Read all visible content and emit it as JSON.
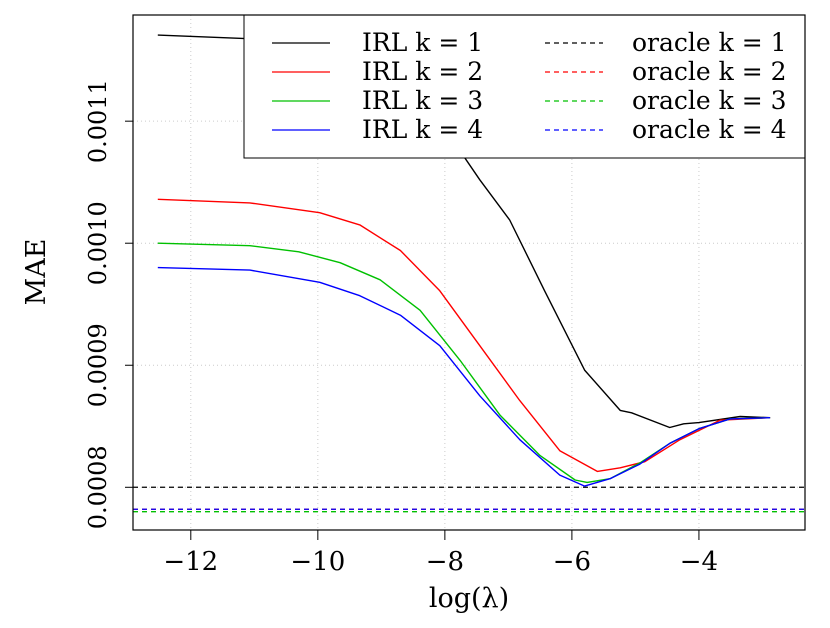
{
  "chart_data": {
    "type": "line",
    "title": "",
    "xlabel": "log(λ)",
    "ylabel": "MAE",
    "xlim": [
      -12.91,
      -2.33
    ],
    "ylim": [
      0.000765,
      0.001187
    ],
    "xticks": [
      -12,
      -10,
      -8,
      -6,
      -4
    ],
    "xtick_labels": [
      "−12",
      "−10",
      "−8",
      "−6",
      "−4"
    ],
    "yticks": [
      0.0008,
      0.0009,
      0.001,
      0.0011
    ],
    "ytick_labels": [
      "0.0008",
      "0.0009",
      "0.0010",
      "0.0011"
    ],
    "grid": true,
    "legend_placement": "top-right",
    "series": [
      {
        "name": "IRL k = 1",
        "color": "#000000",
        "style": "solid",
        "x": [
          -12.52,
          -10.3,
          -9.65,
          -8.7,
          -8.08,
          -7.45,
          -6.98,
          -6.43,
          -5.8,
          -5.24,
          -5.06,
          -4.46,
          -4.24,
          -4.0,
          -3.35,
          -2.88
        ],
        "y": [
          0.0011705,
          0.001166,
          0.001162,
          0.001138,
          0.0011,
          0.001052,
          0.001019,
          0.000961,
          0.000896,
          0.000863,
          0.000861,
          0.000849,
          0.000852,
          0.000853,
          0.000858,
          0.000857
        ]
      },
      {
        "name": "IRL k = 2",
        "color": "#ff0000",
        "style": "solid",
        "x": [
          -12.52,
          -11.07,
          -9.97,
          -9.34,
          -8.7,
          -8.08,
          -7.45,
          -6.82,
          -6.19,
          -5.6,
          -5.24,
          -4.85,
          -4.3,
          -3.67,
          -2.88
        ],
        "y": [
          0.001036,
          0.001033,
          0.001025,
          0.001015,
          0.000994,
          0.000961,
          0.000916,
          0.000871,
          0.00083,
          0.000813,
          0.000816,
          0.000821,
          0.000839,
          0.000855,
          0.000857
        ]
      },
      {
        "name": "IRL k = 3",
        "color": "#00c000",
        "style": "solid",
        "x": [
          -12.52,
          -11.07,
          -10.3,
          -9.65,
          -9.02,
          -8.39,
          -7.76,
          -7.13,
          -6.5,
          -5.95,
          -5.76,
          -5.4,
          -4.93,
          -4.46,
          -4.0,
          -3.51,
          -2.88
        ],
        "y": [
          0.001,
          0.000998,
          0.000993,
          0.000984,
          0.00097,
          0.000945,
          0.000904,
          0.000859,
          0.000826,
          0.000806,
          0.000804,
          0.000807,
          0.00082,
          0.000836,
          0.000848,
          0.000856,
          0.000857
        ]
      },
      {
        "name": "IRL k = 4",
        "color": "#0000ff",
        "style": "solid",
        "x": [
          -12.52,
          -11.07,
          -9.97,
          -9.34,
          -8.7,
          -8.08,
          -7.45,
          -6.82,
          -6.19,
          -5.8,
          -5.4,
          -4.93,
          -4.46,
          -4.0,
          -3.51,
          -2.88
        ],
        "y": [
          0.00098,
          0.000978,
          0.000968,
          0.000957,
          0.000941,
          0.000916,
          0.000875,
          0.000839,
          0.00081,
          0.000801,
          0.000807,
          0.000819,
          0.000836,
          0.000848,
          0.000856,
          0.000857
        ]
      },
      {
        "name": "oracle k = 1",
        "color": "#000000",
        "style": "dashed",
        "hline": 0.0008
      },
      {
        "name": "oracle k = 2",
        "color": "#ff0000",
        "style": "dashed",
        "hline": 0.000782
      },
      {
        "name": "oracle k = 3",
        "color": "#00c000",
        "style": "dashed",
        "hline": 0.00078
      },
      {
        "name": "oracle k = 4",
        "color": "#0000ff",
        "style": "dashed",
        "hline": 0.000782
      }
    ]
  }
}
